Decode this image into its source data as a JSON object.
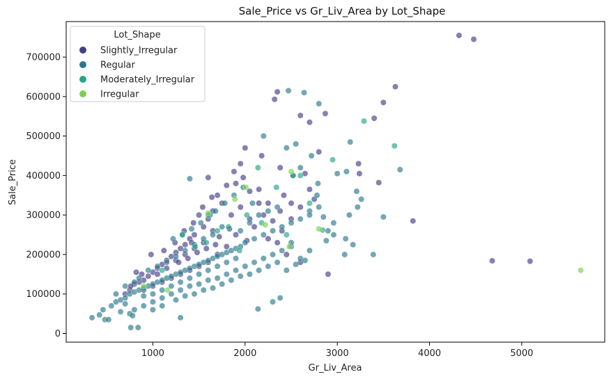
{
  "chart_data": {
    "type": "scatter",
    "title": "Sale_Price vs Gr_Liv_Area by Lot_Shape",
    "xlabel": "Gr_Liv_Area",
    "ylabel": "Sale_Price",
    "xlim": [
      60,
      5900
    ],
    "ylim": [
      -22000,
      790000
    ],
    "xticks": [
      1000,
      2000,
      3000,
      4000,
      5000
    ],
    "yticks": [
      0,
      100000,
      200000,
      300000,
      400000,
      500000,
      600000,
      700000
    ],
    "grid": false,
    "legend": {
      "title": "Lot_Shape",
      "placement": "top-left"
    },
    "point_alpha": 0.65,
    "series": [
      {
        "name": "Slightly_Irregular",
        "color": "#433e85",
        "points": [
          [
            4320,
            755000
          ],
          [
            4480,
            745000
          ],
          [
            3630,
            625000
          ],
          [
            3500,
            585000
          ],
          [
            3400,
            545000
          ],
          [
            4680,
            184000
          ],
          [
            5090,
            183000
          ],
          [
            3820,
            285000
          ],
          [
            3450,
            382000
          ],
          [
            3230,
            430000
          ],
          [
            3240,
            405000
          ],
          [
            2800,
            460000
          ],
          [
            2700,
            535000
          ],
          [
            2600,
            552000
          ],
          [
            2870,
            557000
          ],
          [
            2320,
            593000
          ],
          [
            2350,
            612000
          ],
          [
            2650,
            405000
          ],
          [
            2700,
            365000
          ],
          [
            2420,
            350000
          ],
          [
            2500,
            330000
          ],
          [
            2380,
            310000
          ],
          [
            2300,
            285000
          ],
          [
            2200,
            300000
          ],
          [
            2150,
            330000
          ],
          [
            2050,
            360000
          ],
          [
            2000,
            470000
          ],
          [
            1980,
            395000
          ],
          [
            1900,
            380000
          ],
          [
            1800,
            375000
          ],
          [
            1750,
            330000
          ],
          [
            1700,
            350000
          ],
          [
            1650,
            310000
          ],
          [
            1600,
            290000
          ],
          [
            1550,
            270000
          ],
          [
            1500,
            300000
          ],
          [
            1450,
            250000
          ],
          [
            1400,
            240000
          ],
          [
            1350,
            225000
          ],
          [
            1300,
            215000
          ],
          [
            1250,
            205000
          ],
          [
            1200,
            195000
          ],
          [
            1150,
            185000
          ],
          [
            1100,
            175000
          ],
          [
            1050,
            165000
          ],
          [
            1000,
            155000
          ],
          [
            950,
            145000
          ],
          [
            900,
            135000
          ],
          [
            850,
            130000
          ],
          [
            800,
            125000
          ],
          [
            750,
            110000
          ],
          [
            700,
            100000
          ],
          [
            1800,
            220000
          ],
          [
            1900,
            250000
          ],
          [
            2100,
            270000
          ],
          [
            2250,
            240000
          ],
          [
            2400,
            260000
          ],
          [
            2500,
            290000
          ],
          [
            2600,
            320000
          ],
          [
            2750,
            340000
          ],
          [
            1700,
            200000
          ],
          [
            1600,
            180000
          ],
          [
            1500,
            170000
          ],
          [
            1400,
            160000
          ],
          [
            1300,
            150000
          ],
          [
            1200,
            140000
          ],
          [
            1100,
            130000
          ],
          [
            1000,
            120000
          ],
          [
            900,
            110000
          ],
          [
            1850,
            300000
          ],
          [
            1950,
            320000
          ],
          [
            2050,
            290000
          ],
          [
            1650,
            260000
          ],
          [
            1550,
            230000
          ],
          [
            1450,
            215000
          ],
          [
            1350,
            200000
          ],
          [
            1250,
            185000
          ],
          [
            1150,
            165000
          ],
          [
            1050,
            150000
          ],
          [
            2900,
            150000
          ],
          [
            2600,
            180000
          ],
          [
            2450,
            200000
          ],
          [
            2350,
            230000
          ],
          [
            1880,
            410000
          ],
          [
            2180,
            450000
          ],
          [
            1600,
            395000
          ],
          [
            1420,
            230000
          ],
          [
            1720,
            245000
          ],
          [
            1830,
            265000
          ],
          [
            2020,
            235000
          ],
          [
            1280,
            180000
          ],
          [
            1380,
            190000
          ],
          [
            1480,
            205000
          ],
          [
            1580,
            215000
          ],
          [
            1680,
            225000
          ],
          [
            2250,
            330000
          ],
          [
            2150,
            365000
          ],
          [
            1950,
            430000
          ],
          [
            2380,
            420000
          ],
          [
            2520,
            400000
          ],
          [
            1120,
            210000
          ],
          [
            980,
            200000
          ],
          [
            880,
            150000
          ],
          [
            820,
            155000
          ],
          [
            760,
            120000
          ],
          [
            1240,
            230000
          ],
          [
            1340,
            260000
          ],
          [
            1440,
            280000
          ],
          [
            1540,
            320000
          ],
          [
            1640,
            345000
          ]
        ]
      },
      {
        "name": "Regular",
        "color": "#2a788e",
        "points": [
          [
            3680,
            415000
          ],
          [
            3140,
            485000
          ],
          [
            2800,
            582000
          ],
          [
            2640,
            610000
          ],
          [
            2470,
            615000
          ],
          [
            3500,
            295000
          ],
          [
            3390,
            200000
          ],
          [
            3220,
            320000
          ],
          [
            3210,
            360000
          ],
          [
            3100,
            410000
          ],
          [
            3000,
            405000
          ],
          [
            3090,
            240000
          ],
          [
            3080,
            200000
          ],
          [
            2960,
            280000
          ],
          [
            2900,
            260000
          ],
          [
            2960,
            250000
          ],
          [
            3130,
            300000
          ],
          [
            2850,
            295000
          ],
          [
            2790,
            380000
          ],
          [
            2700,
            310000
          ],
          [
            1400,
            392000
          ],
          [
            2140,
            62000
          ],
          [
            2300,
            80000
          ],
          [
            2380,
            90000
          ],
          [
            1300,
            40000
          ],
          [
            840,
            15000
          ],
          [
            760,
            15000
          ],
          [
            340,
            40000
          ],
          [
            480,
            35000
          ],
          [
            520,
            35000
          ],
          [
            420,
            47000
          ],
          [
            460,
            60000
          ],
          [
            550,
            70000
          ],
          [
            600,
            80000
          ],
          [
            650,
            85000
          ],
          [
            700,
            90000
          ],
          [
            750,
            100000
          ],
          [
            800,
            105000
          ],
          [
            850,
            110000
          ],
          [
            900,
            115000
          ],
          [
            950,
            120000
          ],
          [
            1000,
            125000
          ],
          [
            1050,
            130000
          ],
          [
            1100,
            135000
          ],
          [
            1150,
            140000
          ],
          [
            1200,
            145000
          ],
          [
            1250,
            150000
          ],
          [
            1300,
            155000
          ],
          [
            1350,
            160000
          ],
          [
            1400,
            165000
          ],
          [
            1450,
            170000
          ],
          [
            1500,
            175000
          ],
          [
            1550,
            180000
          ],
          [
            1600,
            185000
          ],
          [
            1650,
            190000
          ],
          [
            1700,
            195000
          ],
          [
            1750,
            200000
          ],
          [
            1800,
            205000
          ],
          [
            1850,
            210000
          ],
          [
            1900,
            215000
          ],
          [
            1950,
            220000
          ],
          [
            2000,
            230000
          ],
          [
            2100,
            240000
          ],
          [
            2200,
            250000
          ],
          [
            2300,
            260000
          ],
          [
            2400,
            270000
          ],
          [
            2500,
            280000
          ],
          [
            2600,
            290000
          ],
          [
            2700,
            300000
          ],
          [
            2800,
            320000
          ],
          [
            800,
            60000
          ],
          [
            900,
            70000
          ],
          [
            1000,
            80000
          ],
          [
            1100,
            90000
          ],
          [
            1200,
            100000
          ],
          [
            1300,
            110000
          ],
          [
            1400,
            120000
          ],
          [
            1500,
            125000
          ],
          [
            1600,
            135000
          ],
          [
            1700,
            140000
          ],
          [
            1800,
            150000
          ],
          [
            1900,
            160000
          ],
          [
            2000,
            170000
          ],
          [
            2100,
            180000
          ],
          [
            2200,
            190000
          ],
          [
            2300,
            200000
          ],
          [
            2400,
            210000
          ],
          [
            2500,
            220000
          ],
          [
            2600,
            190000
          ],
          [
            2700,
            210000
          ],
          [
            1000,
            100000
          ],
          [
            1100,
            110000
          ],
          [
            1200,
            120000
          ],
          [
            1300,
            130000
          ],
          [
            1400,
            140000
          ],
          [
            1500,
            150000
          ],
          [
            1600,
            160000
          ],
          [
            1700,
            170000
          ],
          [
            1800,
            180000
          ],
          [
            1900,
            190000
          ],
          [
            700,
            120000
          ],
          [
            800,
            130000
          ],
          [
            900,
            95000
          ],
          [
            1000,
            60000
          ],
          [
            1100,
            70000
          ],
          [
            1250,
            85000
          ],
          [
            1350,
            95000
          ],
          [
            1450,
            100000
          ],
          [
            1550,
            110000
          ],
          [
            1650,
            115000
          ],
          [
            1750,
            125000
          ],
          [
            1850,
            135000
          ],
          [
            1950,
            145000
          ],
          [
            2050,
            150000
          ],
          [
            2150,
            160000
          ],
          [
            2250,
            170000
          ],
          [
            2350,
            180000
          ],
          [
            2450,
            160000
          ],
          [
            2550,
            175000
          ],
          [
            2650,
            185000
          ],
          [
            1950,
            260000
          ],
          [
            2050,
            280000
          ],
          [
            2150,
            300000
          ],
          [
            2250,
            310000
          ],
          [
            2350,
            320000
          ],
          [
            1750,
            270000
          ],
          [
            1650,
            250000
          ],
          [
            1550,
            240000
          ],
          [
            1450,
            225000
          ],
          [
            1350,
            210000
          ],
          [
            1250,
            195000
          ],
          [
            1150,
            180000
          ],
          [
            1050,
            170000
          ],
          [
            950,
            160000
          ],
          [
            850,
            140000
          ],
          [
            2200,
            500000
          ],
          [
            2450,
            470000
          ],
          [
            2550,
            480000
          ],
          [
            2720,
            450000
          ],
          [
            2600,
            420000
          ],
          [
            2780,
            350000
          ],
          [
            3170,
            225000
          ],
          [
            3260,
            340000
          ],
          [
            2880,
            235000
          ],
          [
            2500,
            230000
          ],
          [
            600,
            100000
          ],
          [
            650,
            55000
          ],
          [
            700,
            75000
          ],
          [
            750,
            50000
          ],
          [
            780,
            45000
          ],
          [
            1680,
            310000
          ],
          [
            1780,
            330000
          ],
          [
            1880,
            350000
          ],
          [
            1980,
            370000
          ],
          [
            2080,
            330000
          ],
          [
            1220,
            240000
          ],
          [
            1320,
            250000
          ],
          [
            1420,
            265000
          ],
          [
            1520,
            280000
          ],
          [
            1620,
            300000
          ]
        ]
      },
      {
        "name": "Moderately_Irregular",
        "color": "#22a884",
        "points": [
          [
            3290,
            538000
          ],
          [
            3620,
            475000
          ],
          [
            2950,
            440000
          ],
          [
            2520,
            400000
          ],
          [
            2600,
            400000
          ],
          [
            2340,
            370000
          ],
          [
            2140,
            420000
          ],
          [
            1700,
            260000
          ],
          [
            1580,
            230000
          ],
          [
            2840,
            262000
          ],
          [
            1940,
            210000
          ],
          [
            2180,
            280000
          ],
          [
            1320,
            250000
          ],
          [
            1100,
            160000
          ],
          [
            1600,
            300000
          ],
          [
            2700,
            330000
          ],
          [
            2020,
            300000
          ],
          [
            1820,
            270000
          ],
          [
            1460,
            220000
          ],
          [
            2450,
            250000
          ]
        ]
      },
      {
        "name": "Irregular",
        "color": "#7ad151",
        "points": [
          [
            5640,
            160000
          ],
          [
            2500,
            410000
          ],
          [
            2480,
            220000
          ],
          [
            2800,
            265000
          ],
          [
            2220,
            275000
          ],
          [
            2010,
            370000
          ],
          [
            1890,
            340000
          ],
          [
            1600,
            305000
          ],
          [
            1160,
            110000
          ],
          [
            900,
            120000
          ]
        ]
      }
    ]
  }
}
